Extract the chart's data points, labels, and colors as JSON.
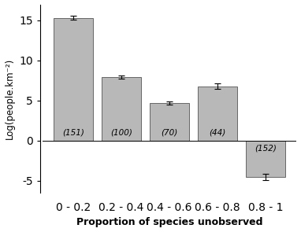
{
  "categories": [
    "0 - 0.2",
    "0.2 - 0.4",
    "0.4 - 0.6",
    "0.6 - 0.8",
    "0.8 - 1"
  ],
  "values": [
    15.3,
    7.9,
    4.7,
    6.8,
    -4.5
  ],
  "errors": [
    0.25,
    0.18,
    0.22,
    0.3,
    0.38
  ],
  "counts": [
    "(151)",
    "(100)",
    "(70)",
    "(44)",
    "(152)"
  ],
  "bar_color": "#b8b8b8",
  "bar_edgecolor": "#666666",
  "ylim": [
    -6.5,
    17
  ],
  "yticks": [
    -5,
    0,
    5,
    10,
    15
  ],
  "ylabel": "Log(people.km⁻²)",
  "xlabel": "Proportion of species unobserved",
  "xlabel_fontsize": 9,
  "ylabel_fontsize": 8.5,
  "tick_fontsize": 7.5,
  "count_fontsize": 7.5,
  "bar_width": 0.82
}
